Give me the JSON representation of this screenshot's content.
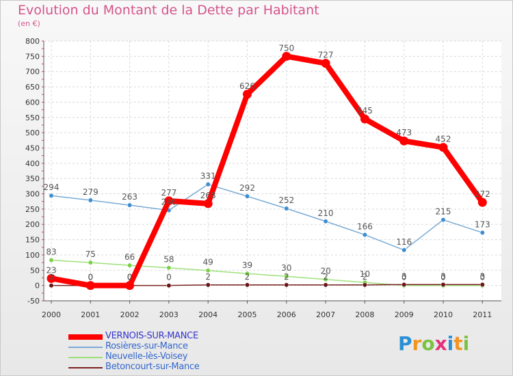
{
  "title": "Evolution du Montant de la Dette par Habitant",
  "unit": "(en €)",
  "logo": {
    "text": "Proxiti",
    "colors": [
      "#2a8fd4",
      "#f29421",
      "#7cc242",
      "#e2337a",
      "#2a8fd4",
      "#f29421",
      "#7cc242"
    ]
  },
  "chart_data": {
    "type": "line",
    "title": "Evolution du Montant de la Dette par Habitant",
    "ylabel": "(en €)",
    "xlabel": "",
    "x": [
      "2000",
      "2001",
      "2002",
      "2003",
      "2004",
      "2005",
      "2006",
      "2007",
      "2008",
      "2009",
      "2010",
      "2011"
    ],
    "ylim": [
      -50,
      800
    ],
    "yticks": [
      -50,
      0,
      50,
      100,
      150,
      200,
      250,
      300,
      350,
      400,
      450,
      500,
      550,
      600,
      650,
      700,
      750,
      800
    ],
    "grid": true,
    "legend": "bottom-left",
    "series": [
      {
        "name": "VERNOIS-SUR-MANCE",
        "color": "#ff0000",
        "dot": "#ff0000",
        "label_color": "#555555",
        "highlight": true,
        "values": [
          23,
          0,
          0,
          277,
          268,
          626,
          750,
          727,
          545,
          473,
          452,
          272
        ],
        "labels": [
          "23",
          "0",
          "0",
          "277",
          "268",
          "626",
          "750",
          "727",
          "545",
          "473",
          "452",
          "272"
        ]
      },
      {
        "name": "Rosières-sur-Mance",
        "color": "#7aaad4",
        "dot": "#3c8dd0",
        "label_color": "#555555",
        "highlight": false,
        "values": [
          294,
          279,
          263,
          246,
          331,
          292,
          252,
          210,
          166,
          116,
          215,
          173
        ],
        "labels": [
          "294",
          "279",
          "263",
          "246",
          "331",
          "292",
          "252",
          "210",
          "166",
          "116",
          "215",
          "173"
        ]
      },
      {
        "name": "Neuvelle-lès-Voisey",
        "color": "#9ee07a",
        "dot": "#7cd048",
        "label_color": "#555555",
        "highlight": false,
        "values": [
          83,
          75,
          66,
          58,
          49,
          39,
          30,
          20,
          10,
          0,
          0,
          0
        ],
        "labels": [
          "83",
          "75",
          "66",
          "58",
          "49",
          "39",
          "30",
          "20",
          "10",
          "0",
          "0",
          "0"
        ]
      },
      {
        "name": "Betoncourt-sur-Mance",
        "color": "#7a2020",
        "dot": "#6a1515",
        "label_color": "#555555",
        "highlight": false,
        "values": [
          0,
          0,
          0,
          0,
          2,
          2,
          2,
          2,
          2,
          3,
          3,
          3
        ],
        "labels": [
          "0",
          "0",
          "0",
          "0",
          "2",
          "2",
          "2",
          "2",
          "2",
          "3",
          "3",
          "3"
        ]
      }
    ]
  }
}
